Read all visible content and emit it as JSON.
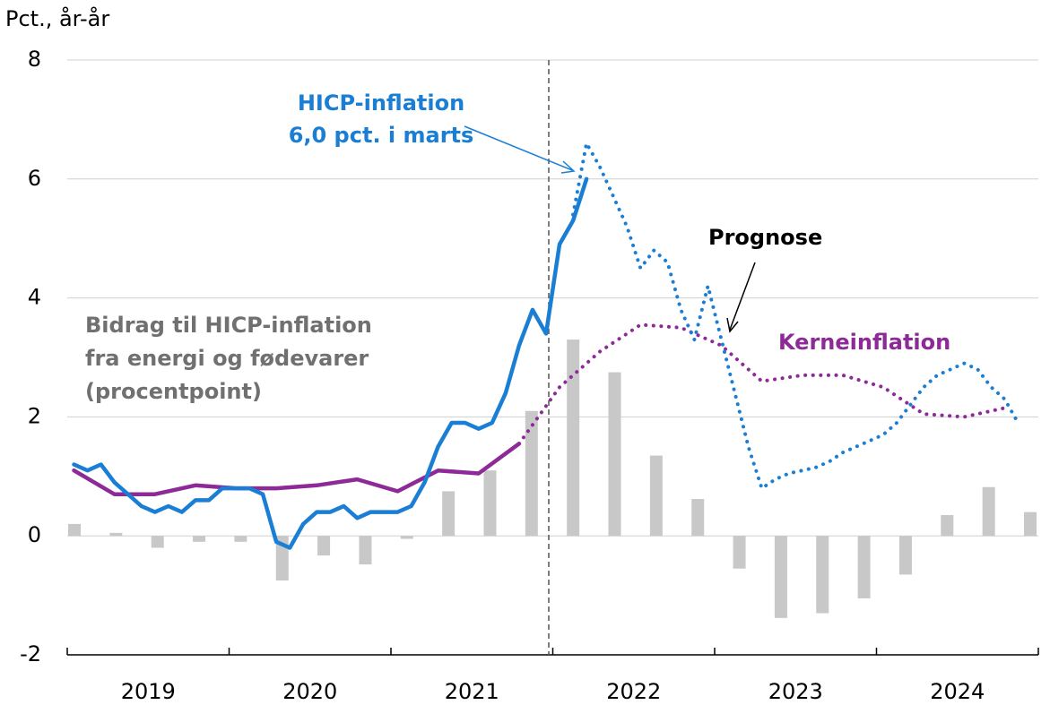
{
  "chart_data": {
    "type": "line",
    "y_axis_label": "Pct., år-år",
    "categories": [
      "2019",
      "2020",
      "2021",
      "2022",
      "2023",
      "2024"
    ],
    "ylim": [
      -2,
      8
    ],
    "yticks": [
      -2,
      0,
      2,
      4,
      6,
      8
    ],
    "grid": true,
    "annotations": {
      "hicp": [
        "HICP-inflation",
        "6,0 pct. i marts"
      ],
      "forecast": "Prognose",
      "core": "Kerneinflation",
      "bars": [
        "Bidrag til HICP-inflation",
        "fra energi og fødevarer",
        "(procentpoint)"
      ]
    },
    "bar_series": {
      "color": "#c8c8c8",
      "values": [
        0.2,
        0.05,
        -0.2,
        -0.1,
        -0.1,
        -0.75,
        -0.33,
        -0.48,
        -0.05,
        0.75,
        1.1,
        2.1,
        3.3,
        2.75,
        1.35,
        0.62,
        -0.55,
        -1.38,
        -1.3,
        -1.05,
        -0.65,
        0.35,
        0.82,
        0.4
      ]
    },
    "monthly_series": [
      {
        "color": "#1a7fd4",
        "dashed": false,
        "values": [
          1.2,
          1.1,
          1.2,
          0.9,
          0.7,
          0.5,
          0.4,
          0.5,
          0.4,
          0.6,
          0.6,
          0.8,
          0.8,
          0.8,
          0.7,
          -0.1,
          -0.2,
          0.2,
          0.4,
          0.4,
          0.5,
          0.3,
          0.4,
          0.4,
          0.4,
          0.5,
          0.9,
          1.5,
          1.9,
          1.9,
          1.8,
          1.9,
          2.4,
          3.2,
          3.8,
          3.4,
          4.9,
          5.3,
          6.0,
          null,
          null,
          null,
          null,
          null,
          null,
          null,
          null,
          null,
          null,
          null,
          null,
          null,
          null,
          null,
          null,
          null,
          null,
          null,
          null,
          null,
          null,
          null,
          null,
          null,
          null,
          null,
          null,
          null,
          null,
          null,
          null,
          null
        ]
      },
      {
        "color": "#1a7fd4",
        "dashed": true,
        "values": [
          null,
          null,
          null,
          null,
          null,
          null,
          null,
          null,
          null,
          null,
          null,
          null,
          null,
          null,
          null,
          null,
          null,
          null,
          null,
          null,
          null,
          null,
          null,
          null,
          null,
          null,
          null,
          null,
          null,
          null,
          null,
          null,
          null,
          null,
          null,
          null,
          null,
          5.4,
          6.6,
          6.2,
          5.7,
          5.2,
          4.5,
          4.8,
          4.6,
          3.8,
          3.3,
          4.2,
          3.3,
          2.4,
          1.5,
          0.8,
          0.95,
          1.05,
          1.1,
          1.15,
          1.25,
          1.4,
          1.5,
          1.6,
          1.7,
          1.9,
          2.2,
          2.5,
          2.7,
          2.8,
          2.9,
          2.8,
          2.5,
          2.3,
          1.9,
          null
        ]
      }
    ],
    "quarterly_series": [
      {
        "color": "#8e2a98",
        "dashed": false,
        "values": [
          1.1,
          0.7,
          0.7,
          0.85,
          0.8,
          0.8,
          0.85,
          0.95,
          0.75,
          1.1,
          1.05,
          1.55,
          null,
          null,
          null,
          null,
          null,
          null,
          null,
          null,
          null,
          null,
          null,
          null
        ]
      },
      {
        "color": "#8e2a98",
        "dashed": true,
        "values": [
          null,
          null,
          null,
          null,
          null,
          null,
          null,
          null,
          null,
          null,
          null,
          1.55,
          2.5,
          3.1,
          3.55,
          3.5,
          3.2,
          2.6,
          2.7,
          2.7,
          2.5,
          2.05,
          2.0,
          2.15
        ]
      }
    ]
  }
}
